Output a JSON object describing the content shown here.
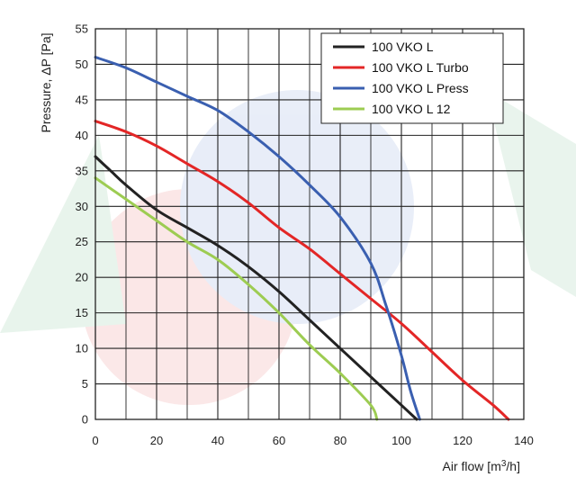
{
  "chart_data": {
    "type": "line",
    "xlabel_main": "Air flow [m",
    "xlabel_sup": "3",
    "xlabel_tail": "/h]",
    "ylabel": "Pressure, ΔP [Pa]",
    "xlim": [
      0,
      140
    ],
    "ylim": [
      0,
      55
    ],
    "x_major_ticks": [
      0,
      20,
      40,
      60,
      80,
      100,
      120,
      140
    ],
    "y_major_ticks": [
      0,
      5,
      10,
      15,
      20,
      25,
      30,
      35,
      40,
      45,
      50,
      55
    ],
    "grid": true,
    "legend_position": "top-right",
    "series": [
      {
        "name": "100 VKO L",
        "color": "#222222",
        "points": [
          [
            0,
            37
          ],
          [
            5,
            35
          ],
          [
            10,
            33
          ],
          [
            20,
            29.5
          ],
          [
            30,
            27
          ],
          [
            40,
            24.5
          ],
          [
            50,
            21.5
          ],
          [
            60,
            18
          ],
          [
            70,
            14
          ],
          [
            80,
            10
          ],
          [
            90,
            6
          ],
          [
            100,
            2
          ],
          [
            105,
            0
          ]
        ]
      },
      {
        "name": "100 VKO L Turbo",
        "color": "#e32626",
        "points": [
          [
            0,
            42
          ],
          [
            10,
            40.5
          ],
          [
            20,
            38.5
          ],
          [
            30,
            36
          ],
          [
            40,
            33.5
          ],
          [
            50,
            30.5
          ],
          [
            60,
            27
          ],
          [
            70,
            24
          ],
          [
            80,
            20.5
          ],
          [
            90,
            17
          ],
          [
            100,
            13.5
          ],
          [
            110,
            9.5
          ],
          [
            120,
            5.5
          ],
          [
            130,
            2
          ],
          [
            135,
            0
          ]
        ]
      },
      {
        "name": "100 VKO L Press",
        "color": "#3a5fb0",
        "points": [
          [
            0,
            51
          ],
          [
            10,
            49.5
          ],
          [
            20,
            47.5
          ],
          [
            30,
            45.5
          ],
          [
            40,
            43.5
          ],
          [
            50,
            40.5
          ],
          [
            60,
            37
          ],
          [
            70,
            33
          ],
          [
            80,
            28.5
          ],
          [
            90,
            22
          ],
          [
            95,
            16
          ],
          [
            100,
            9
          ],
          [
            103,
            4
          ],
          [
            106,
            0
          ]
        ]
      },
      {
        "name": "100 VKO L 12",
        "color": "#9dcc52",
        "points": [
          [
            0,
            34
          ],
          [
            10,
            31
          ],
          [
            20,
            28
          ],
          [
            30,
            25
          ],
          [
            40,
            22.5
          ],
          [
            50,
            19
          ],
          [
            60,
            15
          ],
          [
            70,
            10.5
          ],
          [
            80,
            6.5
          ],
          [
            90,
            2
          ],
          [
            92,
            0
          ]
        ]
      }
    ]
  }
}
